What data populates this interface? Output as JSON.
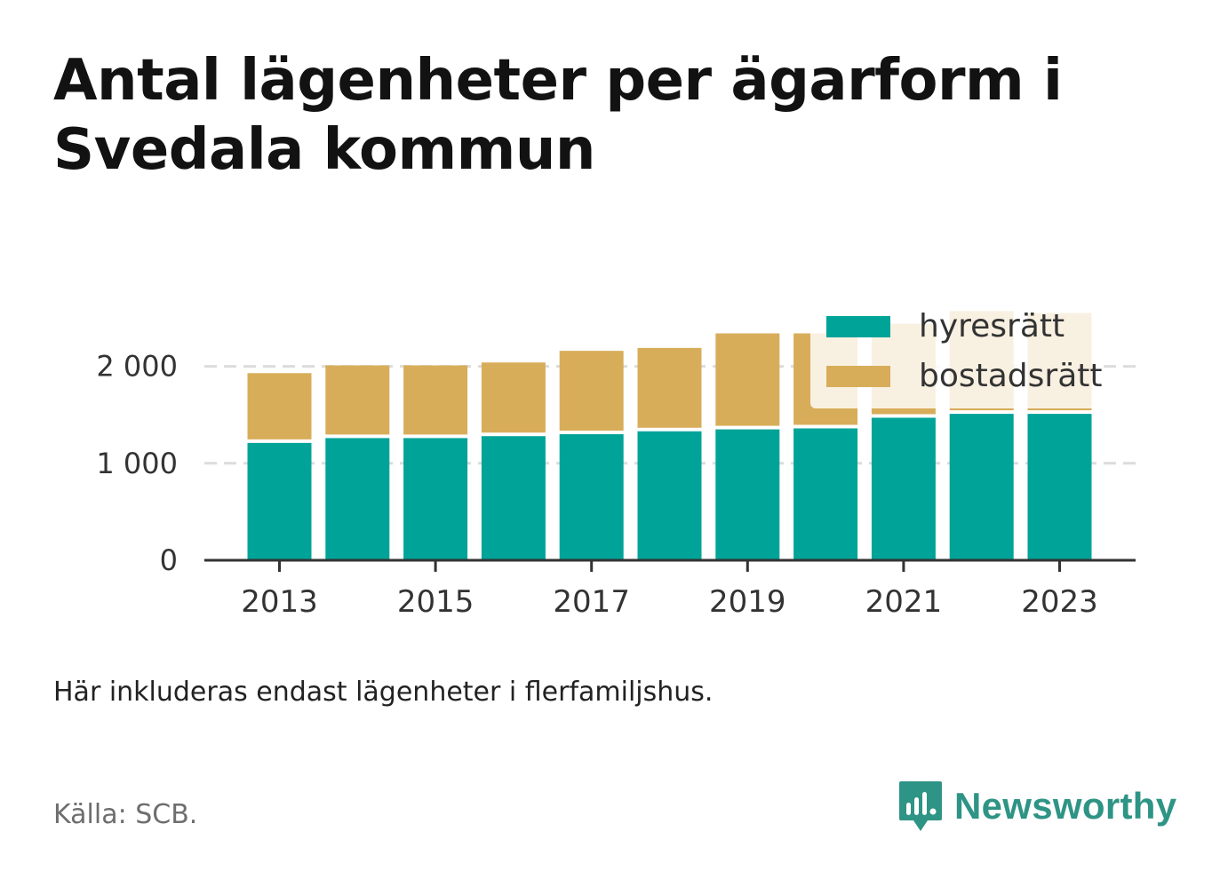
{
  "title": "Antal lägenheter per ägarform i Svedala kommun",
  "note": "Här inkluderas endast lägenheter i flerfamiljshus.",
  "source": "Källa: SCB.",
  "brand": {
    "name": "Newsworthy",
    "icon": "newsworthy-logo-icon",
    "color": "#2e9485"
  },
  "chart_data": {
    "type": "bar",
    "stacked": true,
    "categories": [
      2013,
      2014,
      2015,
      2016,
      2017,
      2018,
      2019,
      2020,
      2021,
      2022,
      2023
    ],
    "x_tick_labels": [
      "2013",
      "2015",
      "2017",
      "2019",
      "2021",
      "2023"
    ],
    "y_ticks": [
      0,
      1000,
      2000
    ],
    "y_tick_labels": [
      "0",
      "1 000",
      "2 000"
    ],
    "ylim": [
      0,
      2650
    ],
    "grid": true,
    "legend_position": "top-right",
    "series": [
      {
        "name": "hyresrätt",
        "color": "#00a398",
        "values": [
          1210,
          1260,
          1260,
          1280,
          1300,
          1330,
          1350,
          1360,
          1470,
          1510,
          1510
        ]
      },
      {
        "name": "bostadsrätt",
        "color": "#d8ad5a",
        "values": [
          720,
          750,
          750,
          760,
          860,
          860,
          990,
          980,
          970,
          1060,
          1040
        ]
      }
    ]
  }
}
